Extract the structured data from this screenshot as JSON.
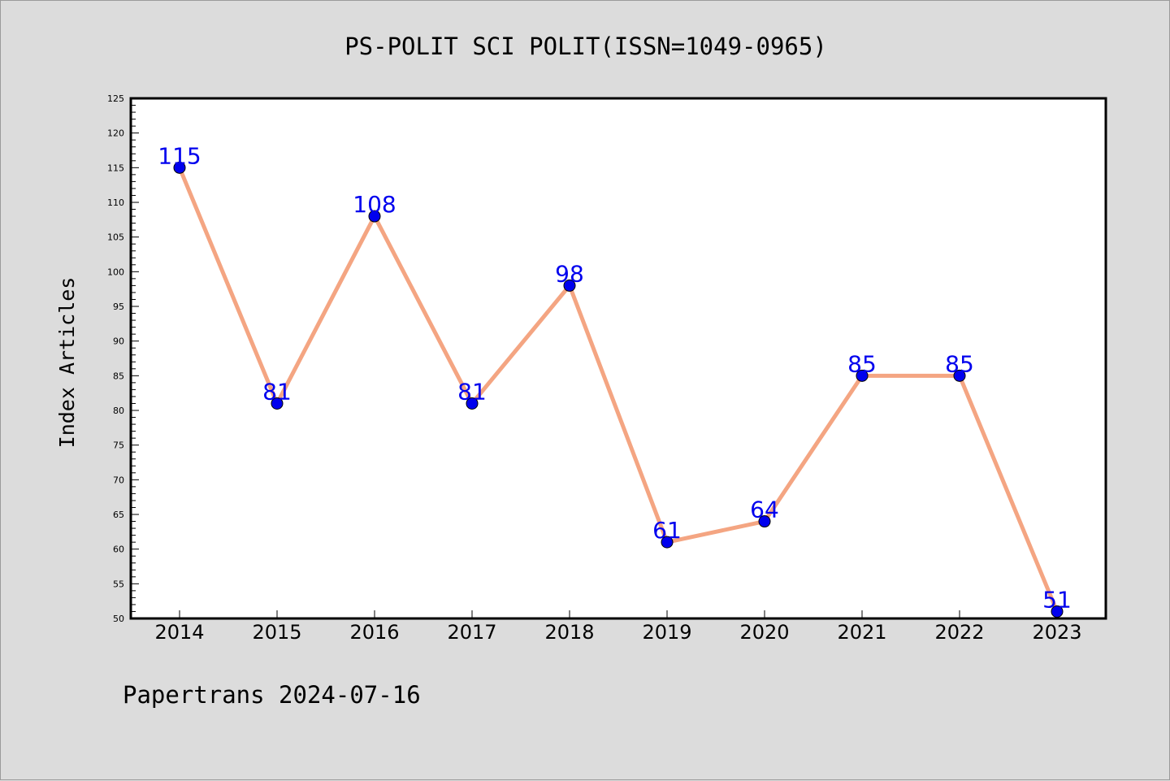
{
  "chart_data": {
    "type": "line",
    "title": "PS-POLIT SCI POLIT(ISSN=1049-0965)",
    "xlabel": "",
    "ylabel": "Index Articles",
    "categories": [
      "2014",
      "2015",
      "2016",
      "2017",
      "2018",
      "2019",
      "2020",
      "2021",
      "2022",
      "2023"
    ],
    "series": [
      {
        "values": [
          115,
          81,
          108,
          81,
          98,
          61,
          64,
          85,
          85,
          51
        ],
        "line_color": "#f4a582",
        "marker_color": "#0000ee",
        "label_color": "#0000ee"
      }
    ],
    "ylim": [
      50,
      125
    ],
    "yticks": [
      "50",
      "55",
      "60",
      "65",
      "70",
      "75",
      "80",
      "85",
      "90",
      "95",
      "100",
      "105",
      "110",
      "115",
      "120",
      "125"
    ],
    "grid": false,
    "legend": "none"
  },
  "footer": {
    "credit": "Papertrans 2024-07-16"
  }
}
